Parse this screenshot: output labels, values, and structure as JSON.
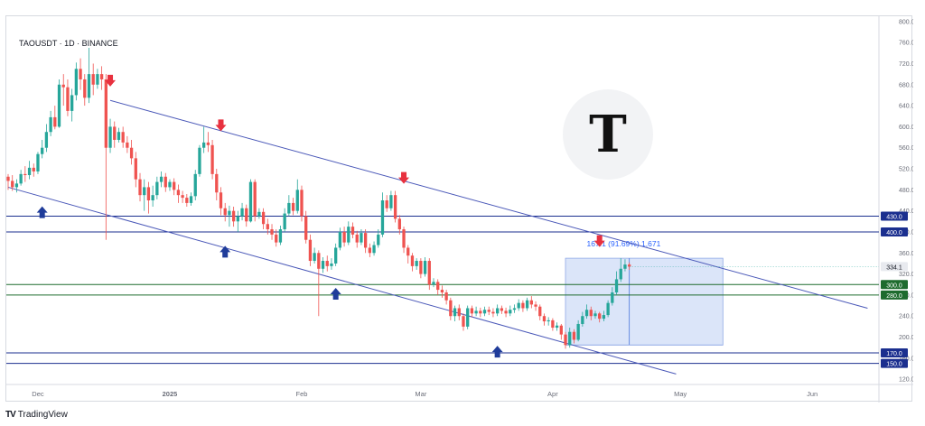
{
  "header": {
    "symbol": "TAOUSDT · 1D · BINANCE"
  },
  "footer": {
    "brand": "TradingView",
    "brand_mark": "TV"
  },
  "logo": {
    "glyph": "T"
  },
  "measure": {
    "label": "167.1 (91.69%) 1,671"
  },
  "colors": {
    "up": "#26a69a",
    "down": "#ef5350",
    "channel": "#4a58b8",
    "level_blue": "#1b2f8f",
    "level_green": "#1e6b2e",
    "measure_fill": "#cfdcf7",
    "arrow_down": "#e8313f",
    "arrow_up": "#1f3c9a"
  },
  "chart_data": {
    "type": "candlestick",
    "title": "TAOUSDT · 1D · BINANCE",
    "ylim": [
      110,
      810
    ],
    "y_ticks": [
      120,
      160,
      200,
      240,
      280,
      320,
      360,
      400,
      440,
      480,
      520,
      560,
      600,
      640,
      680,
      720,
      760,
      800
    ],
    "x_ticks": [
      {
        "label": "Dec",
        "day": 7
      },
      {
        "label": "2025",
        "day": 38
      },
      {
        "label": "Feb",
        "day": 69
      },
      {
        "label": "Mar",
        "day": 97
      },
      {
        "label": "Apr",
        "day": 128
      },
      {
        "label": "May",
        "day": 158
      },
      {
        "label": "Jun",
        "day": 189
      }
    ],
    "last_price": 334.1,
    "levels": [
      {
        "value": 430,
        "label": "430.0",
        "color": "blue"
      },
      {
        "value": 400,
        "label": "400.0",
        "color": "blue"
      },
      {
        "value": 300,
        "label": "300.0",
        "color": "green"
      },
      {
        "value": 280,
        "label": "280.0",
        "color": "green"
      },
      {
        "value": 170,
        "label": "170.0",
        "color": "blue"
      },
      {
        "value": 150,
        "label": "150.0",
        "color": "blue"
      }
    ],
    "channel_upper": [
      {
        "day": 24,
        "price": 650
      },
      {
        "day": 202,
        "price": 255
      }
    ],
    "channel_lower": [
      {
        "day": 0,
        "price": 485
      },
      {
        "day": 157,
        "price": 130
      }
    ],
    "measure_box": {
      "day_start": 131,
      "day_end": 168,
      "price_low": 185,
      "price_high": 350
    },
    "down_arrows": [
      {
        "day": 24,
        "price": 685
      },
      {
        "day": 50,
        "price": 600
      },
      {
        "day": 93,
        "price": 500
      },
      {
        "day": 139,
        "price": 380
      }
    ],
    "up_arrows": [
      {
        "day": 8,
        "price": 440
      },
      {
        "day": 51,
        "price": 365
      },
      {
        "day": 77,
        "price": 285
      },
      {
        "day": 115,
        "price": 175
      }
    ],
    "candles": [
      [
        0,
        505,
        497,
        510,
        480
      ],
      [
        1,
        497,
        485,
        508,
        478
      ],
      [
        2,
        485,
        492,
        500,
        475
      ],
      [
        3,
        492,
        510,
        518,
        488
      ],
      [
        4,
        510,
        508,
        525,
        495
      ],
      [
        5,
        508,
        522,
        535,
        500
      ],
      [
        6,
        522,
        515,
        530,
        505
      ],
      [
        7,
        515,
        548,
        552,
        510
      ],
      [
        8,
        548,
        560,
        575,
        540
      ],
      [
        9,
        560,
        590,
        605,
        552
      ],
      [
        10,
        590,
        618,
        630,
        582
      ],
      [
        11,
        618,
        600,
        640,
        595
      ],
      [
        12,
        600,
        680,
        690,
        598
      ],
      [
        13,
        680,
        675,
        700,
        640
      ],
      [
        14,
        675,
        630,
        690,
        620
      ],
      [
        15,
        630,
        660,
        672,
        610
      ],
      [
        16,
        660,
        710,
        722,
        650
      ],
      [
        17,
        710,
        690,
        730,
        670
      ],
      [
        18,
        690,
        655,
        700,
        640
      ],
      [
        19,
        655,
        700,
        750,
        645
      ],
      [
        20,
        700,
        680,
        720,
        660
      ],
      [
        21,
        680,
        700,
        710,
        672
      ],
      [
        22,
        700,
        690,
        715,
        670
      ],
      [
        23,
        690,
        560,
        700,
        385
      ],
      [
        24,
        560,
        600,
        615,
        550
      ],
      [
        25,
        600,
        575,
        610,
        560
      ],
      [
        26,
        575,
        590,
        598,
        570
      ],
      [
        27,
        590,
        570,
        600,
        560
      ],
      [
        28,
        570,
        560,
        582,
        550
      ],
      [
        29,
        560,
        540,
        575,
        528
      ],
      [
        30,
        540,
        500,
        552,
        485
      ],
      [
        31,
        500,
        470,
        512,
        458
      ],
      [
        32,
        470,
        485,
        500,
        440
      ],
      [
        33,
        485,
        460,
        495,
        435
      ],
      [
        34,
        460,
        470,
        488,
        448
      ],
      [
        35,
        470,
        495,
        505,
        462
      ],
      [
        36,
        495,
        505,
        515,
        485
      ],
      [
        37,
        505,
        485,
        512,
        476
      ],
      [
        38,
        485,
        495,
        500,
        478
      ],
      [
        39,
        495,
        480,
        502,
        470
      ],
      [
        40,
        480,
        470,
        490,
        455
      ],
      [
        41,
        470,
        465,
        478,
        455
      ],
      [
        42,
        465,
        455,
        472,
        448
      ],
      [
        43,
        455,
        468,
        475,
        450
      ],
      [
        44,
        468,
        510,
        518,
        460
      ],
      [
        45,
        510,
        560,
        565,
        505
      ],
      [
        46,
        560,
        570,
        600,
        550
      ],
      [
        47,
        570,
        565,
        590,
        552
      ],
      [
        48,
        565,
        510,
        575,
        500
      ],
      [
        49,
        510,
        475,
        520,
        460
      ],
      [
        50,
        475,
        445,
        485,
        432
      ],
      [
        51,
        445,
        432,
        455,
        420
      ],
      [
        52,
        432,
        440,
        450,
        410
      ],
      [
        53,
        440,
        420,
        448,
        410
      ],
      [
        54,
        420,
        430,
        440,
        400
      ],
      [
        55,
        430,
        445,
        455,
        422
      ],
      [
        56,
        445,
        420,
        452,
        410
      ],
      [
        57,
        420,
        495,
        500,
        418
      ],
      [
        58,
        495,
        430,
        500,
        420
      ],
      [
        59,
        430,
        438,
        445,
        425
      ],
      [
        60,
        438,
        415,
        445,
        405
      ],
      [
        61,
        415,
        405,
        425,
        395
      ],
      [
        62,
        405,
        395,
        415,
        385
      ],
      [
        63,
        395,
        380,
        405,
        372
      ],
      [
        64,
        380,
        405,
        412,
        375
      ],
      [
        65,
        405,
        435,
        445,
        400
      ],
      [
        66,
        435,
        455,
        470,
        430
      ],
      [
        67,
        455,
        440,
        465,
        432
      ],
      [
        68,
        440,
        480,
        500,
        435
      ],
      [
        69,
        480,
        430,
        488,
        420
      ],
      [
        70,
        430,
        385,
        440,
        378
      ],
      [
        71,
        385,
        345,
        395,
        335
      ],
      [
        72,
        345,
        360,
        370,
        340
      ],
      [
        73,
        360,
        330,
        365,
        240
      ],
      [
        74,
        330,
        345,
        352,
        322
      ],
      [
        75,
        345,
        335,
        355,
        325
      ],
      [
        76,
        335,
        340,
        350,
        328
      ],
      [
        77,
        340,
        370,
        378,
        335
      ],
      [
        78,
        370,
        400,
        408,
        365
      ],
      [
        79,
        400,
        380,
        410,
        372
      ],
      [
        80,
        380,
        410,
        420,
        375
      ],
      [
        81,
        410,
        395,
        418,
        388
      ],
      [
        82,
        395,
        380,
        402,
        370
      ],
      [
        83,
        380,
        398,
        405,
        375
      ],
      [
        84,
        398,
        370,
        405,
        360
      ],
      [
        85,
        370,
        360,
        378,
        352
      ],
      [
        86,
        360,
        375,
        382,
        355
      ],
      [
        87,
        375,
        395,
        405,
        370
      ],
      [
        88,
        395,
        460,
        475,
        390
      ],
      [
        89,
        460,
        445,
        470,
        438
      ],
      [
        90,
        445,
        470,
        478,
        440
      ],
      [
        91,
        470,
        425,
        478,
        418
      ],
      [
        92,
        425,
        405,
        432,
        395
      ],
      [
        93,
        405,
        370,
        410,
        360
      ],
      [
        94,
        370,
        355,
        375,
        340
      ],
      [
        95,
        355,
        335,
        360,
        325
      ],
      [
        96,
        335,
        345,
        350,
        328
      ],
      [
        97,
        345,
        320,
        350,
        312
      ],
      [
        98,
        320,
        345,
        352,
        315
      ],
      [
        99,
        345,
        300,
        350,
        290
      ],
      [
        100,
        300,
        305,
        312,
        295
      ],
      [
        101,
        305,
        290,
        310,
        280
      ],
      [
        102,
        290,
        285,
        298,
        275
      ],
      [
        103,
        285,
        270,
        290,
        262
      ],
      [
        104,
        270,
        240,
        275,
        232
      ],
      [
        105,
        240,
        255,
        260,
        230
      ],
      [
        106,
        255,
        240,
        262,
        232
      ],
      [
        107,
        240,
        220,
        245,
        212
      ],
      [
        108,
        220,
        255,
        260,
        215
      ],
      [
        109,
        255,
        245,
        260,
        238
      ],
      [
        110,
        245,
        250,
        258,
        240
      ],
      [
        111,
        250,
        245,
        256,
        238
      ],
      [
        112,
        245,
        252,
        258,
        240
      ],
      [
        113,
        252,
        248,
        258,
        242
      ],
      [
        114,
        248,
        245,
        255,
        238
      ],
      [
        115,
        245,
        255,
        262,
        240
      ],
      [
        116,
        255,
        250,
        260,
        244
      ],
      [
        117,
        250,
        245,
        256,
        238
      ],
      [
        118,
        245,
        252,
        260,
        240
      ],
      [
        119,
        252,
        255,
        262,
        246
      ],
      [
        120,
        255,
        265,
        272,
        250
      ],
      [
        121,
        265,
        255,
        270,
        248
      ],
      [
        122,
        255,
        270,
        275,
        250
      ],
      [
        123,
        270,
        262,
        278,
        255
      ],
      [
        124,
        262,
        258,
        268,
        250
      ],
      [
        125,
        258,
        240,
        262,
        232
      ],
      [
        126,
        240,
        230,
        245,
        222
      ],
      [
        127,
        230,
        232,
        238,
        222
      ],
      [
        128,
        232,
        218,
        236,
        212
      ],
      [
        129,
        218,
        222,
        228,
        212
      ],
      [
        130,
        222,
        205,
        225,
        195
      ],
      [
        131,
        205,
        185,
        210,
        178
      ],
      [
        132,
        185,
        210,
        218,
        180
      ],
      [
        133,
        210,
        195,
        215,
        188
      ],
      [
        134,
        195,
        225,
        232,
        192
      ],
      [
        135,
        225,
        240,
        248,
        220
      ],
      [
        136,
        240,
        252,
        262,
        235
      ],
      [
        137,
        252,
        240,
        258,
        232
      ],
      [
        138,
        240,
        245,
        250,
        235
      ],
      [
        139,
        245,
        235,
        248,
        228
      ],
      [
        140,
        235,
        242,
        250,
        230
      ],
      [
        141,
        242,
        265,
        270,
        238
      ],
      [
        142,
        265,
        285,
        295,
        260
      ],
      [
        143,
        285,
        310,
        325,
        280
      ],
      [
        144,
        310,
        330,
        350,
        305
      ],
      [
        145,
        330,
        338,
        348,
        325
      ],
      [
        146,
        338,
        334,
        342,
        328
      ]
    ]
  }
}
